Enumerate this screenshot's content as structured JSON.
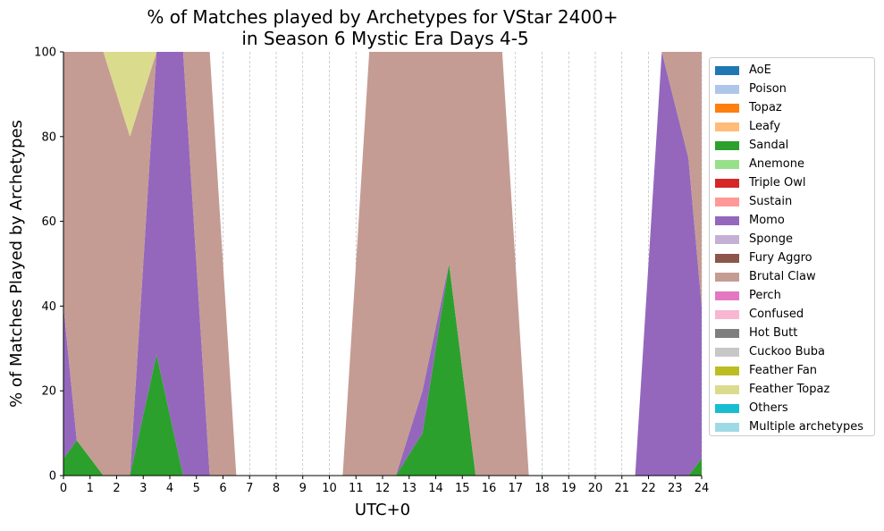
{
  "chart_data": {
    "type": "area",
    "stacked": true,
    "title": "% of Matches played by Archetypes for VStar 2400+",
    "subtitle": "in Season 6 Mystic Era Days 4-5",
    "xlabel": "UTC+0",
    "ylabel": "% of Matches Played by Archetypes",
    "xlim": [
      0,
      24
    ],
    "ylim": [
      0,
      100
    ],
    "x_ticks": [
      "0",
      "1",
      "2",
      "3",
      "4",
      "5",
      "6",
      "7",
      "8",
      "9",
      "10",
      "11",
      "12",
      "13",
      "14",
      "15",
      "16",
      "17",
      "18",
      "19",
      "20",
      "21",
      "22",
      "23",
      "24"
    ],
    "y_ticks": [
      "0",
      "20",
      "40",
      "60",
      "80",
      "100"
    ],
    "grid": "vertical dashed",
    "legend_position": "right",
    "x": [
      0,
      0.5,
      1.5,
      2.5,
      3.5,
      4.5,
      5.5,
      6.5,
      7.5,
      8.5,
      9.5,
      10.5,
      11.5,
      12.5,
      13.5,
      14.5,
      15.5,
      16.5,
      17.5,
      18.5,
      19.5,
      20.5,
      21.5,
      22.5,
      23.5,
      24
    ],
    "series": [
      {
        "name": "AoE",
        "color": "#1f77b4",
        "values": [
          0,
          0,
          0,
          0,
          0,
          0,
          0,
          0,
          0,
          0,
          0,
          0,
          0,
          0,
          0,
          0,
          0,
          0,
          0,
          0,
          0,
          0,
          0,
          0,
          0,
          0
        ]
      },
      {
        "name": "Poison",
        "color": "#aec7e8",
        "values": [
          0,
          0,
          0,
          0,
          0,
          0,
          0,
          0,
          0,
          0,
          0,
          0,
          0,
          0,
          0,
          0,
          0,
          0,
          0,
          0,
          0,
          0,
          0,
          0,
          0,
          0
        ]
      },
      {
        "name": "Topaz",
        "color": "#ff7f0e",
        "values": [
          0,
          0,
          0,
          0,
          0,
          0,
          0,
          0,
          0,
          0,
          0,
          0,
          0,
          0,
          0,
          0,
          0,
          0,
          0,
          0,
          0,
          0,
          0,
          0,
          0,
          0
        ]
      },
      {
        "name": "Leafy",
        "color": "#ffbb78",
        "values": [
          0,
          0,
          0,
          0,
          0,
          0,
          0,
          0,
          0,
          0,
          0,
          0,
          0,
          0,
          0,
          0,
          0,
          0,
          0,
          0,
          0,
          0,
          0,
          0,
          0,
          0
        ]
      },
      {
        "name": "Sandal",
        "color": "#2ca02c",
        "values": [
          4,
          8.3,
          0,
          0,
          28.6,
          0,
          0,
          0,
          0,
          0,
          0,
          0,
          0,
          0,
          10,
          50,
          0,
          0,
          0,
          0,
          0,
          0,
          0,
          0,
          0,
          4
        ]
      },
      {
        "name": "Anemone",
        "color": "#98df8a",
        "values": [
          0,
          0,
          0,
          0,
          0,
          0,
          0,
          0,
          0,
          0,
          0,
          0,
          0,
          0,
          0,
          0,
          0,
          0,
          0,
          0,
          0,
          0,
          0,
          0,
          0,
          0
        ]
      },
      {
        "name": "Triple Owl",
        "color": "#d62728",
        "values": [
          0,
          0,
          0,
          0,
          0,
          0,
          0,
          0,
          0,
          0,
          0,
          0,
          0,
          0,
          0,
          0,
          0,
          0,
          0,
          0,
          0,
          0,
          0,
          0,
          0,
          0
        ]
      },
      {
        "name": "Sustain",
        "color": "#ff9896",
        "values": [
          0,
          0,
          0,
          0,
          0,
          0,
          0,
          0,
          0,
          0,
          0,
          0,
          0,
          0,
          0,
          0,
          0,
          0,
          0,
          0,
          0,
          0,
          0,
          0,
          0,
          0
        ]
      },
      {
        "name": "Momo",
        "color": "#9467bd",
        "values": [
          36,
          0,
          0,
          0,
          71.4,
          100,
          0,
          0,
          0,
          0,
          0,
          0,
          0,
          0,
          10,
          0,
          0,
          0,
          0,
          0,
          0,
          0,
          0,
          100,
          75,
          36
        ]
      },
      {
        "name": "Sponge",
        "color": "#c5b0d5",
        "values": [
          0,
          0,
          0,
          0,
          0,
          0,
          0,
          0,
          0,
          0,
          0,
          0,
          0,
          0,
          0,
          0,
          0,
          0,
          0,
          0,
          0,
          0,
          0,
          0,
          0,
          0
        ]
      },
      {
        "name": "Fury Aggro",
        "color": "#8c564b",
        "values": [
          0,
          0,
          0,
          0,
          0,
          0,
          0,
          0,
          0,
          0,
          0,
          0,
          0,
          0,
          0,
          0,
          0,
          0,
          0,
          0,
          0,
          0,
          0,
          0,
          0,
          0
        ]
      },
      {
        "name": "Brutal Claw",
        "color": "#c49c94",
        "values": [
          60,
          91.7,
          100,
          80,
          0,
          0,
          100,
          0,
          0,
          0,
          0,
          0,
          100,
          100,
          80,
          50,
          100,
          100,
          0,
          0,
          0,
          0,
          0,
          0,
          25,
          60
        ]
      },
      {
        "name": "Perch",
        "color": "#e377c2",
        "values": [
          0,
          0,
          0,
          0,
          0,
          0,
          0,
          0,
          0,
          0,
          0,
          0,
          0,
          0,
          0,
          0,
          0,
          0,
          0,
          0,
          0,
          0,
          0,
          0,
          0,
          0
        ]
      },
      {
        "name": "Confused",
        "color": "#f7b6d2",
        "values": [
          0,
          0,
          0,
          0,
          0,
          0,
          0,
          0,
          0,
          0,
          0,
          0,
          0,
          0,
          0,
          0,
          0,
          0,
          0,
          0,
          0,
          0,
          0,
          0,
          0,
          0
        ]
      },
      {
        "name": "Hot Butt",
        "color": "#7f7f7f",
        "values": [
          0,
          0,
          0,
          0,
          0,
          0,
          0,
          0,
          0,
          0,
          0,
          0,
          0,
          0,
          0,
          0,
          0,
          0,
          0,
          0,
          0,
          0,
          0,
          0,
          0,
          0
        ]
      },
      {
        "name": "Cuckoo Buba",
        "color": "#c7c7c7",
        "values": [
          0,
          0,
          0,
          0,
          0,
          0,
          0,
          0,
          0,
          0,
          0,
          0,
          0,
          0,
          0,
          0,
          0,
          0,
          0,
          0,
          0,
          0,
          0,
          0,
          0,
          0
        ]
      },
      {
        "name": "Feather Fan",
        "color": "#bcbd22",
        "values": [
          0,
          0,
          0,
          0,
          0,
          0,
          0,
          0,
          0,
          0,
          0,
          0,
          0,
          0,
          0,
          0,
          0,
          0,
          0,
          0,
          0,
          0,
          0,
          0,
          0,
          0
        ]
      },
      {
        "name": "Feather Topaz",
        "color": "#dbdb8d",
        "values": [
          0,
          0,
          0,
          20,
          0,
          0,
          0,
          0,
          0,
          0,
          0,
          0,
          0,
          0,
          0,
          0,
          0,
          0,
          0,
          0,
          0,
          0,
          0,
          0,
          0,
          0
        ]
      },
      {
        "name": "Others",
        "color": "#17becf",
        "values": [
          0,
          0,
          0,
          0,
          0,
          0,
          0,
          0,
          0,
          0,
          0,
          0,
          0,
          0,
          0,
          0,
          0,
          0,
          0,
          0,
          0,
          0,
          0,
          0,
          0,
          0
        ]
      },
      {
        "name": "Multiple archetypes",
        "color": "#9edae5",
        "values": [
          0,
          0,
          0,
          0,
          0,
          0,
          0,
          0,
          0,
          0,
          0,
          0,
          0,
          0,
          0,
          0,
          0,
          0,
          0,
          0,
          0,
          0,
          0,
          0,
          0,
          0
        ]
      }
    ]
  }
}
